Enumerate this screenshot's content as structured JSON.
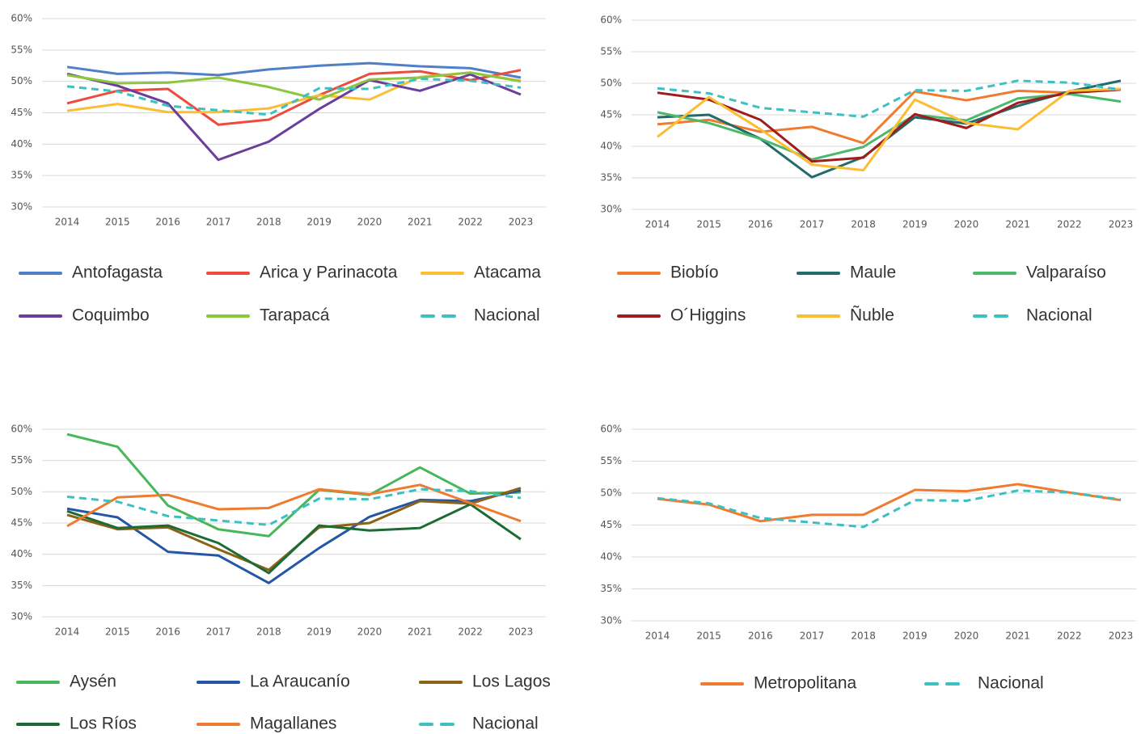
{
  "chart_data": [
    {
      "type": "line",
      "categories": [
        "2014",
        "2015",
        "2016",
        "2017",
        "2018",
        "2019",
        "2020",
        "2021",
        "2022",
        "2023"
      ],
      "ylim": [
        30,
        60
      ],
      "yticks": [
        {
          "value": 30,
          "label": "30%"
        },
        {
          "value": 35,
          "label": "35%"
        },
        {
          "value": 40,
          "label": "40%"
        },
        {
          "value": 45,
          "label": "45%"
        },
        {
          "value": 50,
          "label": "50%"
        },
        {
          "value": 55,
          "label": "55%"
        },
        {
          "value": 60,
          "label": "60%"
        }
      ],
      "grid": true,
      "series": [
        {
          "name": "Antofagasta",
          "color": "#4e7fc7",
          "values": [
            52.3,
            51.2,
            51.4,
            51.0,
            51.9,
            52.5,
            52.9,
            52.4,
            52.1,
            50.6
          ]
        },
        {
          "name": "Arica y Parinacota",
          "color": "#ee4b3d",
          "values": [
            46.5,
            48.5,
            48.8,
            43.1,
            43.9,
            47.8,
            51.2,
            51.6,
            50.2,
            51.8
          ]
        },
        {
          "name": "Atacama",
          "color": "#fbbd32",
          "values": [
            45.3,
            46.4,
            45.1,
            45.1,
            45.7,
            47.8,
            47.1,
            50.7,
            51.4,
            50.1
          ]
        },
        {
          "name": "Coquimbo",
          "color": "#6a3f9c",
          "values": [
            51.2,
            49.3,
            46.5,
            37.5,
            40.4,
            45.6,
            50.2,
            48.5,
            51.1,
            47.9
          ]
        },
        {
          "name": "Tarapacá",
          "color": "#8cc63f",
          "values": [
            51.0,
            49.7,
            49.8,
            50.6,
            49.1,
            47.1,
            50.3,
            50.6,
            51.4,
            50.0
          ]
        },
        {
          "name": "Nacional",
          "color": "#3cc0c0",
          "dashed": true,
          "values": [
            49.2,
            48.4,
            46.1,
            45.4,
            44.7,
            48.9,
            48.8,
            50.4,
            50.1,
            49.0
          ]
        }
      ]
    },
    {
      "type": "line",
      "categories": [
        "2014",
        "2015",
        "2016",
        "2017",
        "2018",
        "2019",
        "2020",
        "2021",
        "2022",
        "2023"
      ],
      "ylim": [
        30,
        60
      ],
      "yticks": [
        {
          "value": 30,
          "label": "30%"
        },
        {
          "value": 35,
          "label": "35%"
        },
        {
          "value": 40,
          "label": "40%"
        },
        {
          "value": 45,
          "label": "45%"
        },
        {
          "value": 50,
          "label": "50%"
        },
        {
          "value": 55,
          "label": "55%"
        },
        {
          "value": 60,
          "label": "60%"
        }
      ],
      "grid": true,
      "series": [
        {
          "name": "Biobío",
          "color": "#ef7b2e",
          "values": [
            43.5,
            44.2,
            42.3,
            43.1,
            40.5,
            48.7,
            47.3,
            48.8,
            48.5,
            49.0
          ]
        },
        {
          "name": "Maule",
          "color": "#236b6b",
          "values": [
            44.6,
            45.0,
            41.2,
            35.1,
            38.3,
            44.6,
            43.6,
            46.4,
            48.7,
            50.4
          ]
        },
        {
          "name": "Valparaíso",
          "color": "#4cb86b",
          "values": [
            45.4,
            43.7,
            41.2,
            37.9,
            39.9,
            45.0,
            44.1,
            47.6,
            48.3,
            47.1
          ]
        },
        {
          "name": "O´Higgins",
          "color": "#9e1c1c",
          "values": [
            48.5,
            47.4,
            44.2,
            37.6,
            38.2,
            45.1,
            42.9,
            46.9,
            48.5,
            49.0
          ]
        },
        {
          "name": "Ñuble",
          "color": "#fbbd32",
          "values": [
            41.5,
            47.8,
            42.7,
            37.1,
            36.2,
            47.4,
            43.7,
            42.7,
            48.8,
            49.1
          ]
        },
        {
          "name": "Nacional",
          "color": "#3cc0c0",
          "dashed": true,
          "values": [
            49.2,
            48.4,
            46.1,
            45.4,
            44.7,
            48.9,
            48.8,
            50.4,
            50.1,
            49.0
          ]
        }
      ]
    },
    {
      "type": "line",
      "categories": [
        "2014",
        "2015",
        "2016",
        "2017",
        "2018",
        "2019",
        "2020",
        "2021",
        "2022",
        "2023"
      ],
      "ylim": [
        30,
        60
      ],
      "yticks": [
        {
          "value": 30,
          "label": "30%"
        },
        {
          "value": 35,
          "label": "35%"
        },
        {
          "value": 40,
          "label": "40%"
        },
        {
          "value": 45,
          "label": "45%"
        },
        {
          "value": 50,
          "label": "50%"
        },
        {
          "value": 55,
          "label": "55%"
        },
        {
          "value": 60,
          "label": "60%"
        }
      ],
      "grid": true,
      "series": [
        {
          "name": "Aysén",
          "color": "#47b85a",
          "values": [
            59.2,
            57.2,
            47.8,
            44.0,
            42.9,
            50.3,
            49.5,
            53.9,
            49.7,
            49.9
          ]
        },
        {
          "name": "La Araucanío",
          "color": "#2456a6",
          "values": [
            47.3,
            45.9,
            40.4,
            39.8,
            35.4,
            41.0,
            46.0,
            48.7,
            48.5,
            50.2
          ]
        },
        {
          "name": "Los Lagos",
          "color": "#8b6317",
          "values": [
            46.3,
            44.0,
            44.3,
            40.8,
            37.5,
            44.3,
            45.0,
            48.5,
            48.1,
            50.6
          ]
        },
        {
          "name": "Los Ríos",
          "color": "#1d6b34",
          "values": [
            46.9,
            44.2,
            44.6,
            41.8,
            37.0,
            44.6,
            43.8,
            44.2,
            48.0,
            42.4
          ]
        },
        {
          "name": "Magallanes",
          "color": "#ef7b2e",
          "values": [
            44.5,
            49.1,
            49.5,
            47.2,
            47.4,
            50.4,
            49.6,
            51.1,
            48.2,
            45.3
          ]
        },
        {
          "name": "Nacional",
          "color": "#3cc0c0",
          "dashed": true,
          "values": [
            49.2,
            48.4,
            46.1,
            45.4,
            44.7,
            48.9,
            48.8,
            50.4,
            50.1,
            49.0
          ]
        }
      ]
    },
    {
      "type": "line",
      "categories": [
        "2014",
        "2015",
        "2016",
        "2017",
        "2018",
        "2019",
        "2020",
        "2021",
        "2022",
        "2023"
      ],
      "ylim": [
        30,
        60
      ],
      "yticks": [
        {
          "value": 30,
          "label": "30%"
        },
        {
          "value": 35,
          "label": "35%"
        },
        {
          "value": 40,
          "label": "40%"
        },
        {
          "value": 45,
          "label": "45%"
        },
        {
          "value": 50,
          "label": "50%"
        },
        {
          "value": 55,
          "label": "55%"
        },
        {
          "value": 60,
          "label": "60%"
        }
      ],
      "grid": true,
      "series": [
        {
          "name": "Metropolitana",
          "color": "#ef7b2e",
          "values": [
            49.1,
            48.2,
            45.6,
            46.6,
            46.6,
            50.5,
            50.3,
            51.4,
            50.1,
            48.9
          ]
        },
        {
          "name": "Nacional",
          "color": "#3cc0c0",
          "dashed": true,
          "values": [
            49.2,
            48.4,
            46.1,
            45.4,
            44.7,
            48.9,
            48.8,
            50.4,
            50.1,
            49.0
          ]
        }
      ]
    }
  ]
}
